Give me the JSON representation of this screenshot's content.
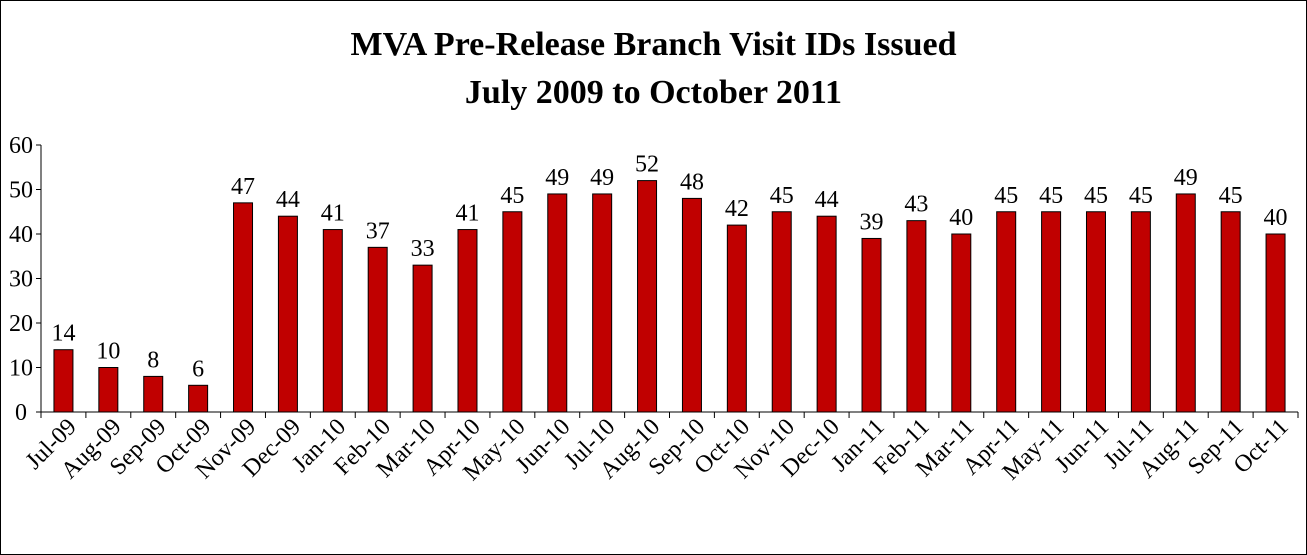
{
  "chart_data": {
    "type": "bar",
    "title": "MVA Pre-Release Branch Visit IDs Issued",
    "subtitle": "July 2009 to October 2011",
    "xlabel": "",
    "ylabel": "",
    "ylim": [
      0,
      60
    ],
    "yticks": [
      "0",
      "10",
      "20",
      "30",
      "40",
      "50",
      "60"
    ],
    "grid": false,
    "bar_color": "#C00000",
    "categories": [
      "Jul-09",
      "Aug-09",
      "Sep-09",
      "Oct-09",
      "Nov-09",
      "Dec-09",
      "Jan-10",
      "Feb-10",
      "Mar-10",
      "Apr-10",
      "May-10",
      "Jun-10",
      "Jul-10",
      "Aug-10",
      "Sep-10",
      "Oct-10",
      "Nov-10",
      "Dec-10",
      "Jan-11",
      "Feb-11",
      "Mar-11",
      "Apr-11",
      "May-11",
      "Jun-11",
      "Jul-11",
      "Aug-11",
      "Sep-11",
      "Oct-11"
    ],
    "values": [
      14,
      10,
      8,
      6,
      47,
      44,
      41,
      37,
      33,
      41,
      45,
      49,
      49,
      52,
      48,
      42,
      45,
      44,
      39,
      43,
      40,
      45,
      45,
      45,
      45,
      49,
      45,
      40
    ]
  }
}
